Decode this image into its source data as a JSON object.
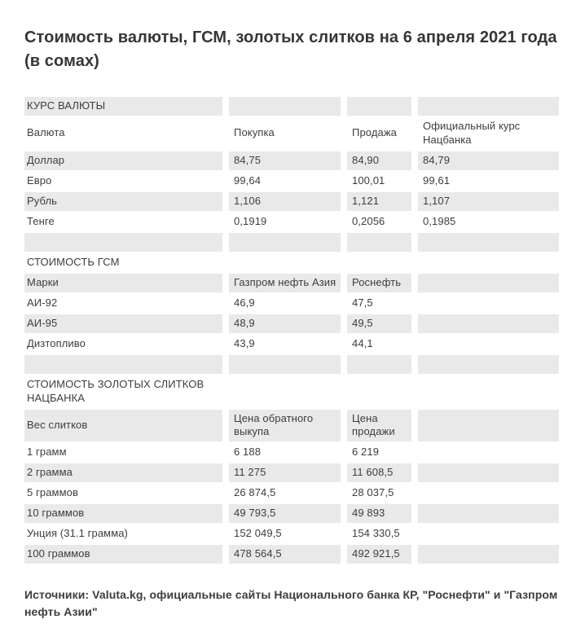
{
  "page": {
    "title": "Стоимость валюты, ГСМ, золотых слитков на 6 апреля 2021 года (в сомах)",
    "footer": "Источники: Valuta.kg, официальные сайты Национального банка КР, \"Роснефти\" и \"Газпром нефть Азии\""
  },
  "colors": {
    "stripe": "#e9e9e9",
    "text": "#3d3d3d",
    "title_text": "#363636",
    "background": "#ffffff"
  },
  "table": {
    "rows": [
      {
        "type": "section",
        "cells": [
          "КУРС ВАЛЮТЫ",
          "",
          "",
          ""
        ]
      },
      {
        "type": "header",
        "cells": [
          "Валюта",
          "Покупка",
          "Продажа",
          "Официальный курс Нацбанка"
        ]
      },
      {
        "type": "data",
        "cells": [
          "Доллар",
          "84,75",
          "84,90",
          "84,79"
        ]
      },
      {
        "type": "data",
        "cells": [
          "Евро",
          "99,64",
          "100,01",
          "99,61"
        ]
      },
      {
        "type": "data",
        "cells": [
          "Рубль",
          "1,106",
          "1,121",
          "1,107"
        ]
      },
      {
        "type": "data",
        "cells": [
          "Тенге",
          "0,1919",
          "0,2056",
          "0,1985"
        ]
      },
      {
        "type": "spacer",
        "cells": [
          "",
          "",
          "",
          ""
        ]
      },
      {
        "type": "section",
        "cells": [
          "СТОИМОСТЬ ГСМ",
          "",
          "",
          ""
        ]
      },
      {
        "type": "header",
        "cells": [
          "Марки",
          "Газпром нефть Азия",
          "Роснефть",
          ""
        ]
      },
      {
        "type": "data",
        "cells": [
          "АИ-92",
          "46,9",
          "47,5",
          ""
        ]
      },
      {
        "type": "data",
        "cells": [
          "АИ-95",
          "48,9",
          "49,5",
          ""
        ]
      },
      {
        "type": "data",
        "cells": [
          "Дизтопливо",
          "43,9",
          "44,1",
          ""
        ]
      },
      {
        "type": "spacer",
        "cells": [
          "",
          "",
          "",
          ""
        ]
      },
      {
        "type": "section",
        "cells": [
          "СТОИМОСТЬ ЗОЛОТЫХ СЛИТКОВ НАЦБАНКА",
          "",
          "",
          ""
        ]
      },
      {
        "type": "header",
        "cells": [
          "Вес слитков",
          "Цена обратного выкупа",
          "Цена продажи",
          ""
        ]
      },
      {
        "type": "data",
        "cells": [
          "1 грамм",
          "6 188",
          "6 219",
          ""
        ]
      },
      {
        "type": "data",
        "cells": [
          "2 грамма",
          "11 275",
          "11 608,5",
          ""
        ]
      },
      {
        "type": "data",
        "cells": [
          "5 граммов",
          "26 874,5",
          "28 037,5",
          ""
        ]
      },
      {
        "type": "data",
        "cells": [
          "10 граммов",
          "49 793,5",
          "49 893",
          ""
        ]
      },
      {
        "type": "data",
        "cells": [
          "Унция (31.1 грамма)",
          "152 049,5",
          "154 330,5",
          ""
        ]
      },
      {
        "type": "data",
        "cells": [
          "100 граммов",
          "478 564,5",
          "492 921,5",
          ""
        ]
      }
    ]
  }
}
